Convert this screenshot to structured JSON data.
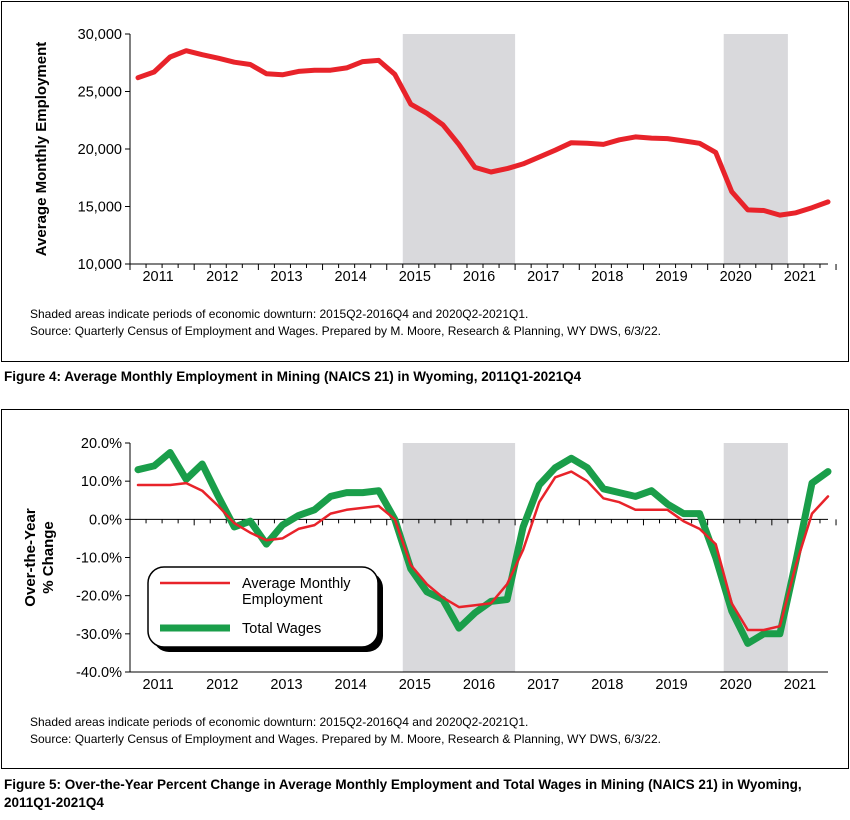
{
  "figure4": {
    "caption": "Figure 4: Average Monthly Employment in Mining (NAICS 21) in Wyoming, 2011Q1-2021Q4",
    "note1": "Shaded areas indicate periods of economic downturn: 2015Q2-2016Q4 and 2020Q2-2021Q1.",
    "note2": "Source: Quarterly Census of Employment and Wages. Prepared by M. Moore, Research & Planning, WY DWS, 6/3/22."
  },
  "figure5": {
    "caption": "Figure 5: Over-the-Year Percent Change in Average Monthly Employment and Total Wages in Mining (NAICS 21) in Wyoming, 2011Q1-2021Q4",
    "note1": "Shaded areas indicate periods of economic downturn: 2015Q2-2016Q4 and 2020Q2-2021Q1.",
    "note2": "Source: Quarterly Census of Employment and Wages. Prepared by M. Moore, Research & Planning, WY DWS, 6/3/22."
  },
  "chart_data": [
    {
      "type": "line",
      "title": "",
      "xlabel": "",
      "ylabel": "Average Monthly Employment",
      "ylim": [
        10000,
        30000
      ],
      "yticks": [
        10000,
        15000,
        20000,
        25000,
        30000
      ],
      "ytick_labels": [
        "10,000",
        "15,000",
        "20,000",
        "25,000",
        "30,000"
      ],
      "x_tick_labels": [
        "2011",
        "2012",
        "2013",
        "2014",
        "2015",
        "2016",
        "2017",
        "2018",
        "2019",
        "2020",
        "2021"
      ],
      "grid": false,
      "shaded_periods": [
        [
          "2015Q2",
          "2016Q4"
        ],
        [
          "2020Q2",
          "2021Q1"
        ]
      ],
      "colors": {
        "employment": "#e8232a",
        "shade": "#d9d9dc"
      },
      "x": [
        "2011Q1",
        "2011Q2",
        "2011Q3",
        "2011Q4",
        "2012Q1",
        "2012Q2",
        "2012Q3",
        "2012Q4",
        "2013Q1",
        "2013Q2",
        "2013Q3",
        "2013Q4",
        "2014Q1",
        "2014Q2",
        "2014Q3",
        "2014Q4",
        "2015Q1",
        "2015Q2",
        "2015Q3",
        "2015Q4",
        "2016Q1",
        "2016Q2",
        "2016Q3",
        "2016Q4",
        "2017Q1",
        "2017Q2",
        "2017Q3",
        "2017Q4",
        "2018Q1",
        "2018Q2",
        "2018Q3",
        "2018Q4",
        "2019Q1",
        "2019Q2",
        "2019Q3",
        "2019Q4",
        "2020Q1",
        "2020Q2",
        "2020Q3",
        "2020Q4",
        "2021Q1",
        "2021Q2",
        "2021Q3",
        "2021Q4"
      ],
      "series": [
        {
          "values": [
            26200,
            26700,
            28000,
            28550,
            28200,
            27900,
            27550,
            27350,
            26550,
            26450,
            26750,
            26850,
            26850,
            27050,
            27600,
            27700,
            26500,
            23900,
            23100,
            22100,
            20400,
            18400,
            18000,
            18300,
            18700,
            19300,
            19900,
            20550,
            20500,
            20400,
            20800,
            21050,
            20950,
            20900,
            20700,
            20500,
            19700,
            16300,
            14700,
            14650,
            14250,
            14450,
            14900,
            15400
          ]
        }
      ]
    },
    {
      "type": "line",
      "title": "",
      "xlabel": "",
      "ylabel": "Over-the-Year % Change",
      "ylim": [
        -40,
        20
      ],
      "yticks": [
        -40,
        -30,
        -20,
        -10,
        0,
        10,
        20
      ],
      "ytick_labels": [
        "-40.0%",
        "-30.0%",
        "-20.0%",
        "-10.0%",
        "0.0%",
        "10.0%",
        "20.0%"
      ],
      "x_tick_labels": [
        "2011",
        "2012",
        "2013",
        "2014",
        "2015",
        "2016",
        "2017",
        "2018",
        "2019",
        "2020",
        "2021"
      ],
      "grid": false,
      "legend": "lower-left",
      "shaded_periods": [
        [
          "2015Q2",
          "2016Q4"
        ],
        [
          "2020Q2",
          "2021Q1"
        ]
      ],
      "colors": {
        "employment": "#e8232a",
        "wages": "#1a9e4a",
        "shade": "#d9d9dc"
      },
      "x": [
        "2011Q1",
        "2011Q2",
        "2011Q3",
        "2011Q4",
        "2012Q1",
        "2012Q2",
        "2012Q3",
        "2012Q4",
        "2013Q1",
        "2013Q2",
        "2013Q3",
        "2013Q4",
        "2014Q1",
        "2014Q2",
        "2014Q3",
        "2014Q4",
        "2015Q1",
        "2015Q2",
        "2015Q3",
        "2015Q4",
        "2016Q1",
        "2016Q2",
        "2016Q3",
        "2016Q4",
        "2017Q1",
        "2017Q2",
        "2017Q3",
        "2017Q4",
        "2018Q1",
        "2018Q2",
        "2018Q3",
        "2018Q4",
        "2019Q1",
        "2019Q2",
        "2019Q3",
        "2019Q4",
        "2020Q1",
        "2020Q2",
        "2020Q3",
        "2020Q4",
        "2021Q1",
        "2021Q2",
        "2021Q3",
        "2021Q4"
      ],
      "series": [
        {
          "name": "Average Monthly Employment",
          "color": "#e8232a",
          "values": [
            9.0,
            9.0,
            9.0,
            9.5,
            7.5,
            3.5,
            -1.0,
            -3.5,
            -5.5,
            -5.0,
            -2.5,
            -1.5,
            1.5,
            2.5,
            3.0,
            3.5,
            0.0,
            -12.0,
            -17.0,
            -20.5,
            -23.0,
            -22.5,
            -22.0,
            -17.0,
            -8.0,
            4.5,
            11.0,
            12.5,
            10.0,
            5.5,
            4.5,
            2.5,
            2.5,
            2.5,
            -0.5,
            -2.5,
            -6.5,
            -22.0,
            -29.0,
            -29.0,
            -28.0,
            -12.0,
            1.5,
            6.0
          ]
        },
        {
          "name": "Total Wages",
          "color": "#1a9e4a",
          "values": [
            13.0,
            14.0,
            17.5,
            10.5,
            14.5,
            6.0,
            -2.0,
            -0.5,
            -6.5,
            -1.5,
            1.0,
            2.5,
            6.0,
            7.0,
            7.0,
            7.5,
            0.0,
            -13.0,
            -19.0,
            -21.0,
            -28.5,
            -24.5,
            -21.5,
            -21.0,
            -2.0,
            9.0,
            13.5,
            16.0,
            13.5,
            8.0,
            7.0,
            6.0,
            7.5,
            4.0,
            1.5,
            1.5,
            -10.0,
            -24.0,
            -32.5,
            -30.0,
            -30.0,
            -11.0,
            9.5,
            12.5
          ]
        }
      ]
    }
  ]
}
